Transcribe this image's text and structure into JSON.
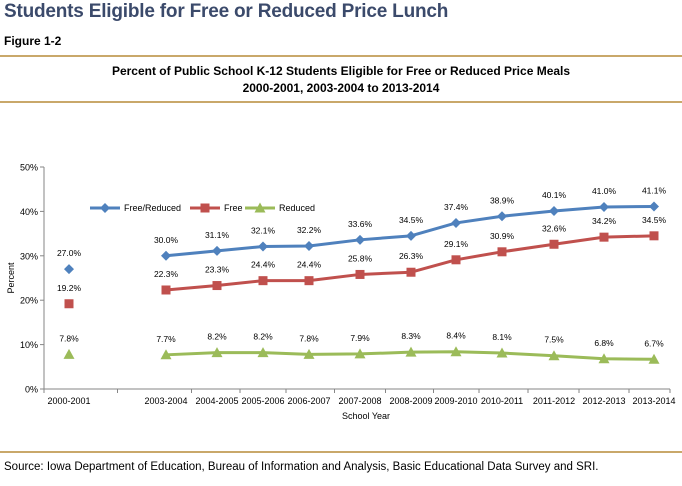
{
  "page": {
    "title": "Students Eligible for Free or Reduced Price Lunch",
    "figure_label": "Figure 1-2",
    "source": "Source:  Iowa Department of Education, Bureau of Information and Analysis, Basic Educational Data Survey and SRI."
  },
  "chart_data": {
    "type": "line",
    "title": "Percent of Public School K-12 Students Eligible for Free or Reduced Price Meals",
    "subtitle": "2000-2001, 2003-2004 to 2013-2014",
    "xlabel": "School Year",
    "ylabel": "Percent",
    "ylim": [
      0,
      50
    ],
    "yticks": [
      "0%",
      "10%",
      "20%",
      "30%",
      "40%",
      "50%"
    ],
    "categories": [
      "2000-2001",
      "2003-2004",
      "2004-2005",
      "2005-2006",
      "2006-2007",
      "2007-2008",
      "2008-2009",
      "2009-2010",
      "2010-2011",
      "2011-2012",
      "2012-2013",
      "2013-2014"
    ],
    "gap_after_index": 0,
    "legend_position": "upper-left",
    "series": [
      {
        "name": "Free/Reduced",
        "color": "#4f81bd",
        "marker": "diamond",
        "values": [
          27.0,
          30.0,
          31.1,
          32.1,
          32.2,
          33.6,
          34.5,
          37.4,
          38.9,
          40.1,
          41.0,
          41.1
        ],
        "labels": [
          "27.0%",
          "30.0%",
          "31.1%",
          "32.1%",
          "32.2%",
          "33.6%",
          "34.5%",
          "37.4%",
          "38.9%",
          "40.1%",
          "41.0%",
          "41.1%"
        ]
      },
      {
        "name": "Free",
        "color": "#c0504d",
        "marker": "square",
        "values": [
          19.2,
          22.3,
          23.3,
          24.4,
          24.4,
          25.8,
          26.3,
          29.1,
          30.9,
          32.6,
          34.2,
          34.5
        ],
        "labels": [
          "19.2%",
          "22.3%",
          "23.3%",
          "24.4%",
          "24.4%",
          "25.8%",
          "26.3%",
          "29.1%",
          "30.9%",
          "32.6%",
          "34.2%",
          "34.5%"
        ]
      },
      {
        "name": "Reduced",
        "color": "#9bbb59",
        "marker": "triangle",
        "values": [
          7.8,
          7.7,
          8.2,
          8.2,
          7.8,
          7.9,
          8.3,
          8.4,
          8.1,
          7.5,
          6.8,
          6.7
        ],
        "labels": [
          "7.8%",
          "7.7%",
          "8.2%",
          "8.2%",
          "7.8%",
          "7.9%",
          "8.3%",
          "8.4%",
          "8.1%",
          "7.5%",
          "6.8%",
          "6.7%"
        ]
      }
    ]
  }
}
